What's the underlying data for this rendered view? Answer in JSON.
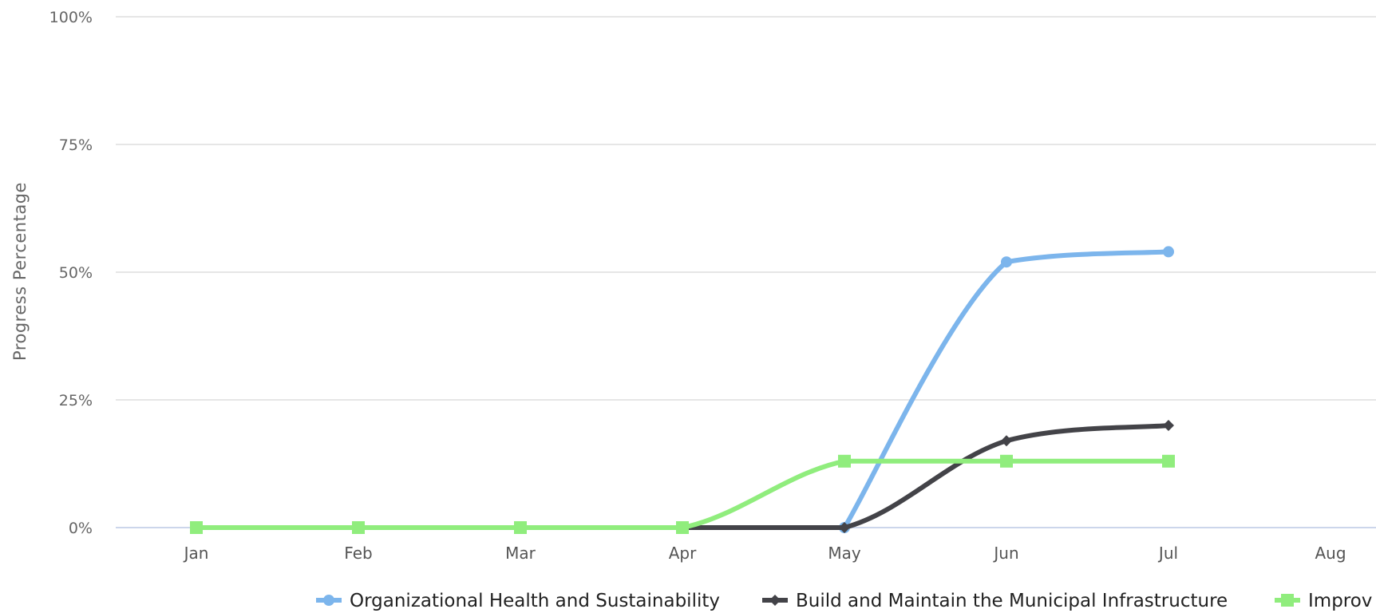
{
  "chart_data": {
    "type": "line",
    "title": "",
    "xlabel": "",
    "ylabel": "Progress Percentage",
    "categories": [
      "Jan",
      "Feb",
      "Mar",
      "Apr",
      "May",
      "Jun",
      "Jul",
      "Aug"
    ],
    "y_ticks": [
      "0%",
      "25%",
      "50%",
      "75%",
      "100%"
    ],
    "ylim": [
      0,
      100
    ],
    "grid": true,
    "curve": "smooth",
    "legend_position": "bottom",
    "series": [
      {
        "name": "Organizational Health and Sustainability",
        "color": "#7cb5ec",
        "marker": "circle",
        "values": [
          null,
          null,
          null,
          null,
          0,
          52,
          54,
          null
        ]
      },
      {
        "name": "Build and Maintain the Municipal Infrastructure",
        "color": "#434348",
        "marker": "diamond",
        "values": [
          null,
          null,
          null,
          0,
          0,
          17,
          20,
          null
        ]
      },
      {
        "name": "Improv",
        "color": "#90ed7d",
        "marker": "square",
        "values": [
          0,
          0,
          0,
          0,
          13,
          13,
          13,
          null
        ]
      }
    ]
  }
}
